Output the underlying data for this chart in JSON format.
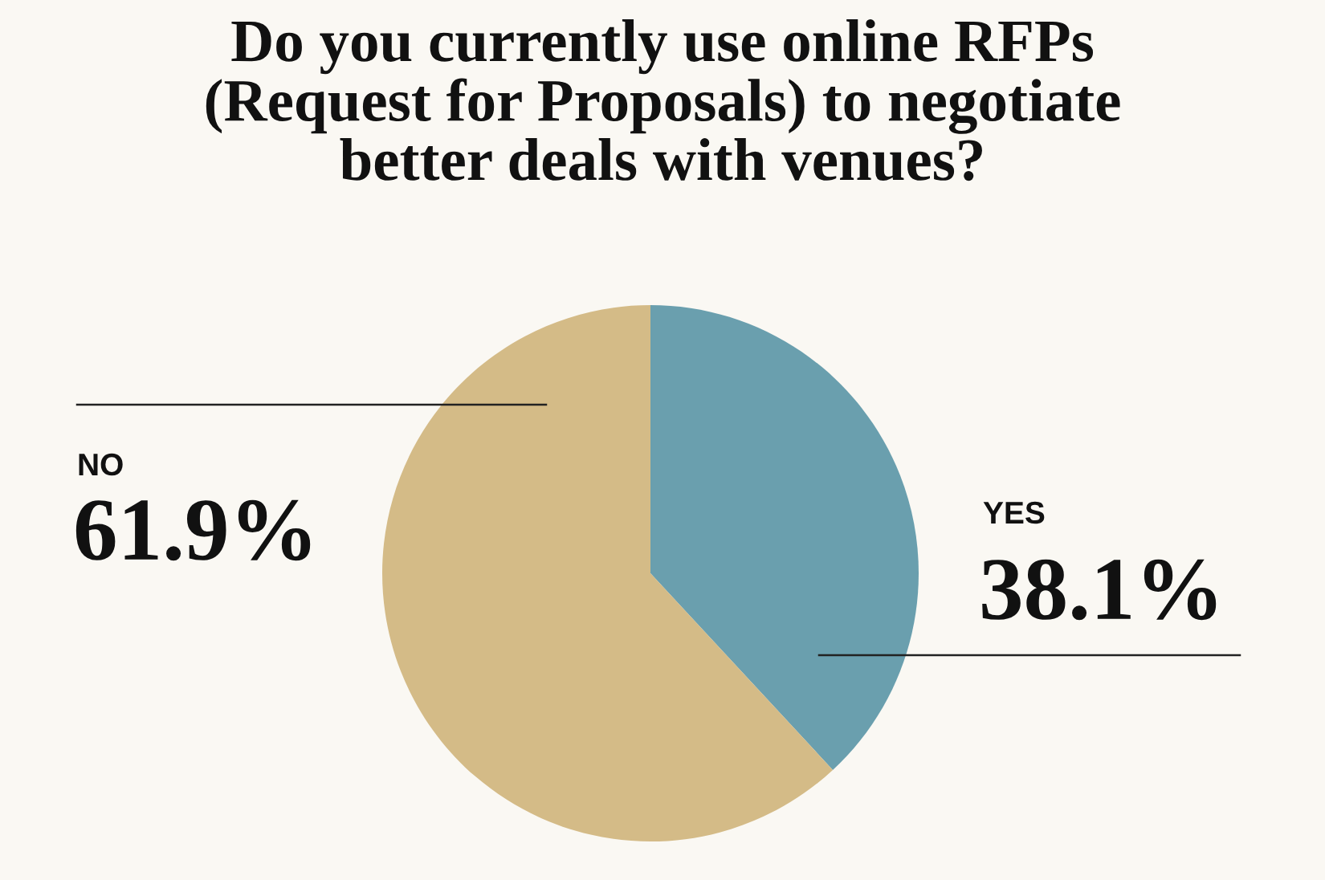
{
  "chart_data": {
    "type": "pie",
    "title": "Do you currently use online RFPs\n(Request for Proposals) to negotiate\nbetter deals with venues?",
    "categories": [
      "YES",
      "NO"
    ],
    "values": [
      38.1,
      61.9
    ],
    "value_labels": [
      "38.1%",
      "61.9%"
    ],
    "colors": [
      "#6a9fae",
      "#d4bb87"
    ],
    "legend": false
  }
}
